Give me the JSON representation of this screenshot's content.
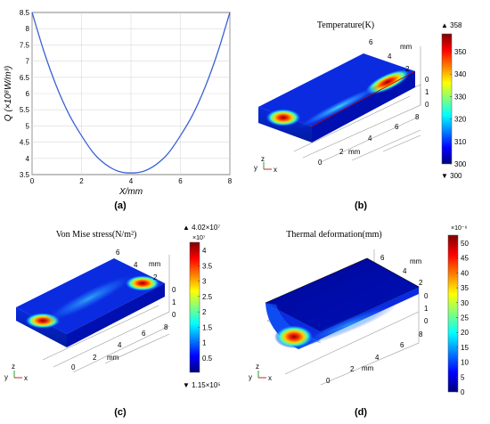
{
  "captions": [
    "(a)",
    "(b)",
    "(c)",
    "(d)"
  ],
  "chart_data": [
    {
      "type": "line",
      "panel": "a",
      "title": "",
      "xlabel": "X/mm",
      "ylabel": "Q (×10⁸W/m³)",
      "xlim": [
        0,
        8
      ],
      "ylim": [
        3.5,
        8.5
      ],
      "x_ticks": [
        "0",
        "2",
        "4",
        "6",
        "8"
      ],
      "y_ticks": [
        "3.5",
        "4",
        "4.5",
        "5",
        "5.5",
        "6",
        "6.5",
        "7",
        "7.5",
        "8",
        "8.5"
      ],
      "grid": true,
      "color": "#3a62d6",
      "series": [
        {
          "x": [
            0,
            0.5,
            1,
            1.5,
            2,
            2.5,
            3,
            3.5,
            4,
            4.5,
            5,
            5.5,
            6,
            6.5,
            7,
            7.5,
            8
          ],
          "y": [
            8.5,
            7.25,
            6.2,
            5.35,
            4.7,
            4.15,
            3.8,
            3.6,
            3.55,
            3.6,
            3.8,
            4.15,
            4.7,
            5.35,
            6.2,
            7.25,
            8.5
          ]
        }
      ]
    },
    {
      "type": "heatmap",
      "panel": "b",
      "title": "Temperature(K)",
      "colorbar_ticks": [
        "350",
        "340",
        "330",
        "320",
        "310",
        "300"
      ],
      "max_label": "▲ 358",
      "min_label": "▼ 300",
      "axis_ticks_top": [
        "6",
        "4",
        "2"
      ],
      "axis_ticks_side": [
        "0",
        "1",
        "0"
      ],
      "axis_ticks_bottom": [
        "0",
        "2",
        "4",
        "6",
        "8"
      ],
      "axis_unit": "mm",
      "triad": [
        "y",
        "z",
        "x"
      ]
    },
    {
      "type": "heatmap",
      "panel": "c",
      "title": "Von Mise stress(N/m²)",
      "colorbar_ticks": [
        "4",
        "3.5",
        "3",
        "2.5",
        "2",
        "1.5",
        "1",
        "0.5"
      ],
      "colorbar_exponent": "×10⁷",
      "max_label": "▲ 4.02×10⁷",
      "min_label": "▼ 1.15×10⁵",
      "axis_ticks_top": [
        "6",
        "4",
        "2"
      ],
      "axis_ticks_side": [
        "0",
        "1",
        "0"
      ],
      "axis_ticks_bottom": [
        "0",
        "2",
        "4",
        "6",
        "8"
      ],
      "axis_unit": "mm",
      "triad": [
        "y",
        "z",
        "x"
      ]
    },
    {
      "type": "heatmap",
      "panel": "d",
      "title": "Thermal deformation(mm)",
      "colorbar_ticks": [
        "50",
        "45",
        "40",
        "35",
        "30",
        "25",
        "20",
        "15",
        "10",
        "5",
        "0"
      ],
      "colorbar_exponent": "×10⁻⁶",
      "axis_ticks_top": [
        "6",
        "4",
        "2"
      ],
      "axis_ticks_side": [
        "0",
        "1",
        "0"
      ],
      "axis_ticks_bottom": [
        "0",
        "2",
        "4",
        "6",
        "8"
      ],
      "axis_unit": "mm",
      "triad": [
        "y",
        "z",
        "x"
      ]
    }
  ]
}
